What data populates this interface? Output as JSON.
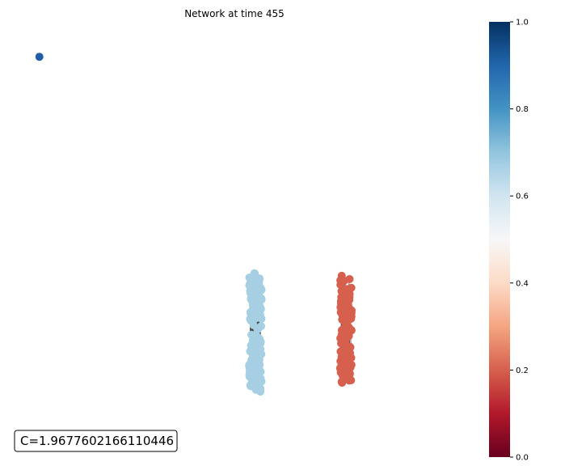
{
  "chart_data": {
    "type": "scatter",
    "title": "Network at time 455",
    "annotation": "C=1.9677602166110446",
    "grid": false,
    "legend": "none",
    "colorbar": {
      "cmap": "RdBu",
      "range": [
        0.0,
        1.0
      ],
      "ticks": [
        "0.0",
        "0.2",
        "0.4",
        "0.6",
        "0.8",
        "1.0"
      ],
      "tick_values": [
        0.0,
        0.2,
        0.4,
        0.6,
        0.8,
        1.0
      ],
      "stops": [
        "#67001f",
        "#b2182b",
        "#d6604d",
        "#f4a582",
        "#fddbc7",
        "#f7f7f7",
        "#d1e5f0",
        "#92c5de",
        "#4393c3",
        "#2166ac",
        "#053061"
      ]
    },
    "clusters": [
      {
        "opinion": 0.97,
        "color": "#1f5fa8",
        "nodes": 1,
        "center": [
          -0.95,
          0.92
        ],
        "spread": [
          0,
          0
        ]
      },
      {
        "opinion": 0.68,
        "color": "#a6cfe3",
        "nodes": 150,
        "center": [
          0.1,
          -0.5
        ],
        "spread": [
          0.03,
          0.31
        ]
      },
      {
        "opinion": 0.22,
        "color": "#d6604d",
        "nodes": 120,
        "center": [
          0.54,
          -0.48
        ],
        "spread": [
          0.028,
          0.28
        ]
      }
    ]
  }
}
